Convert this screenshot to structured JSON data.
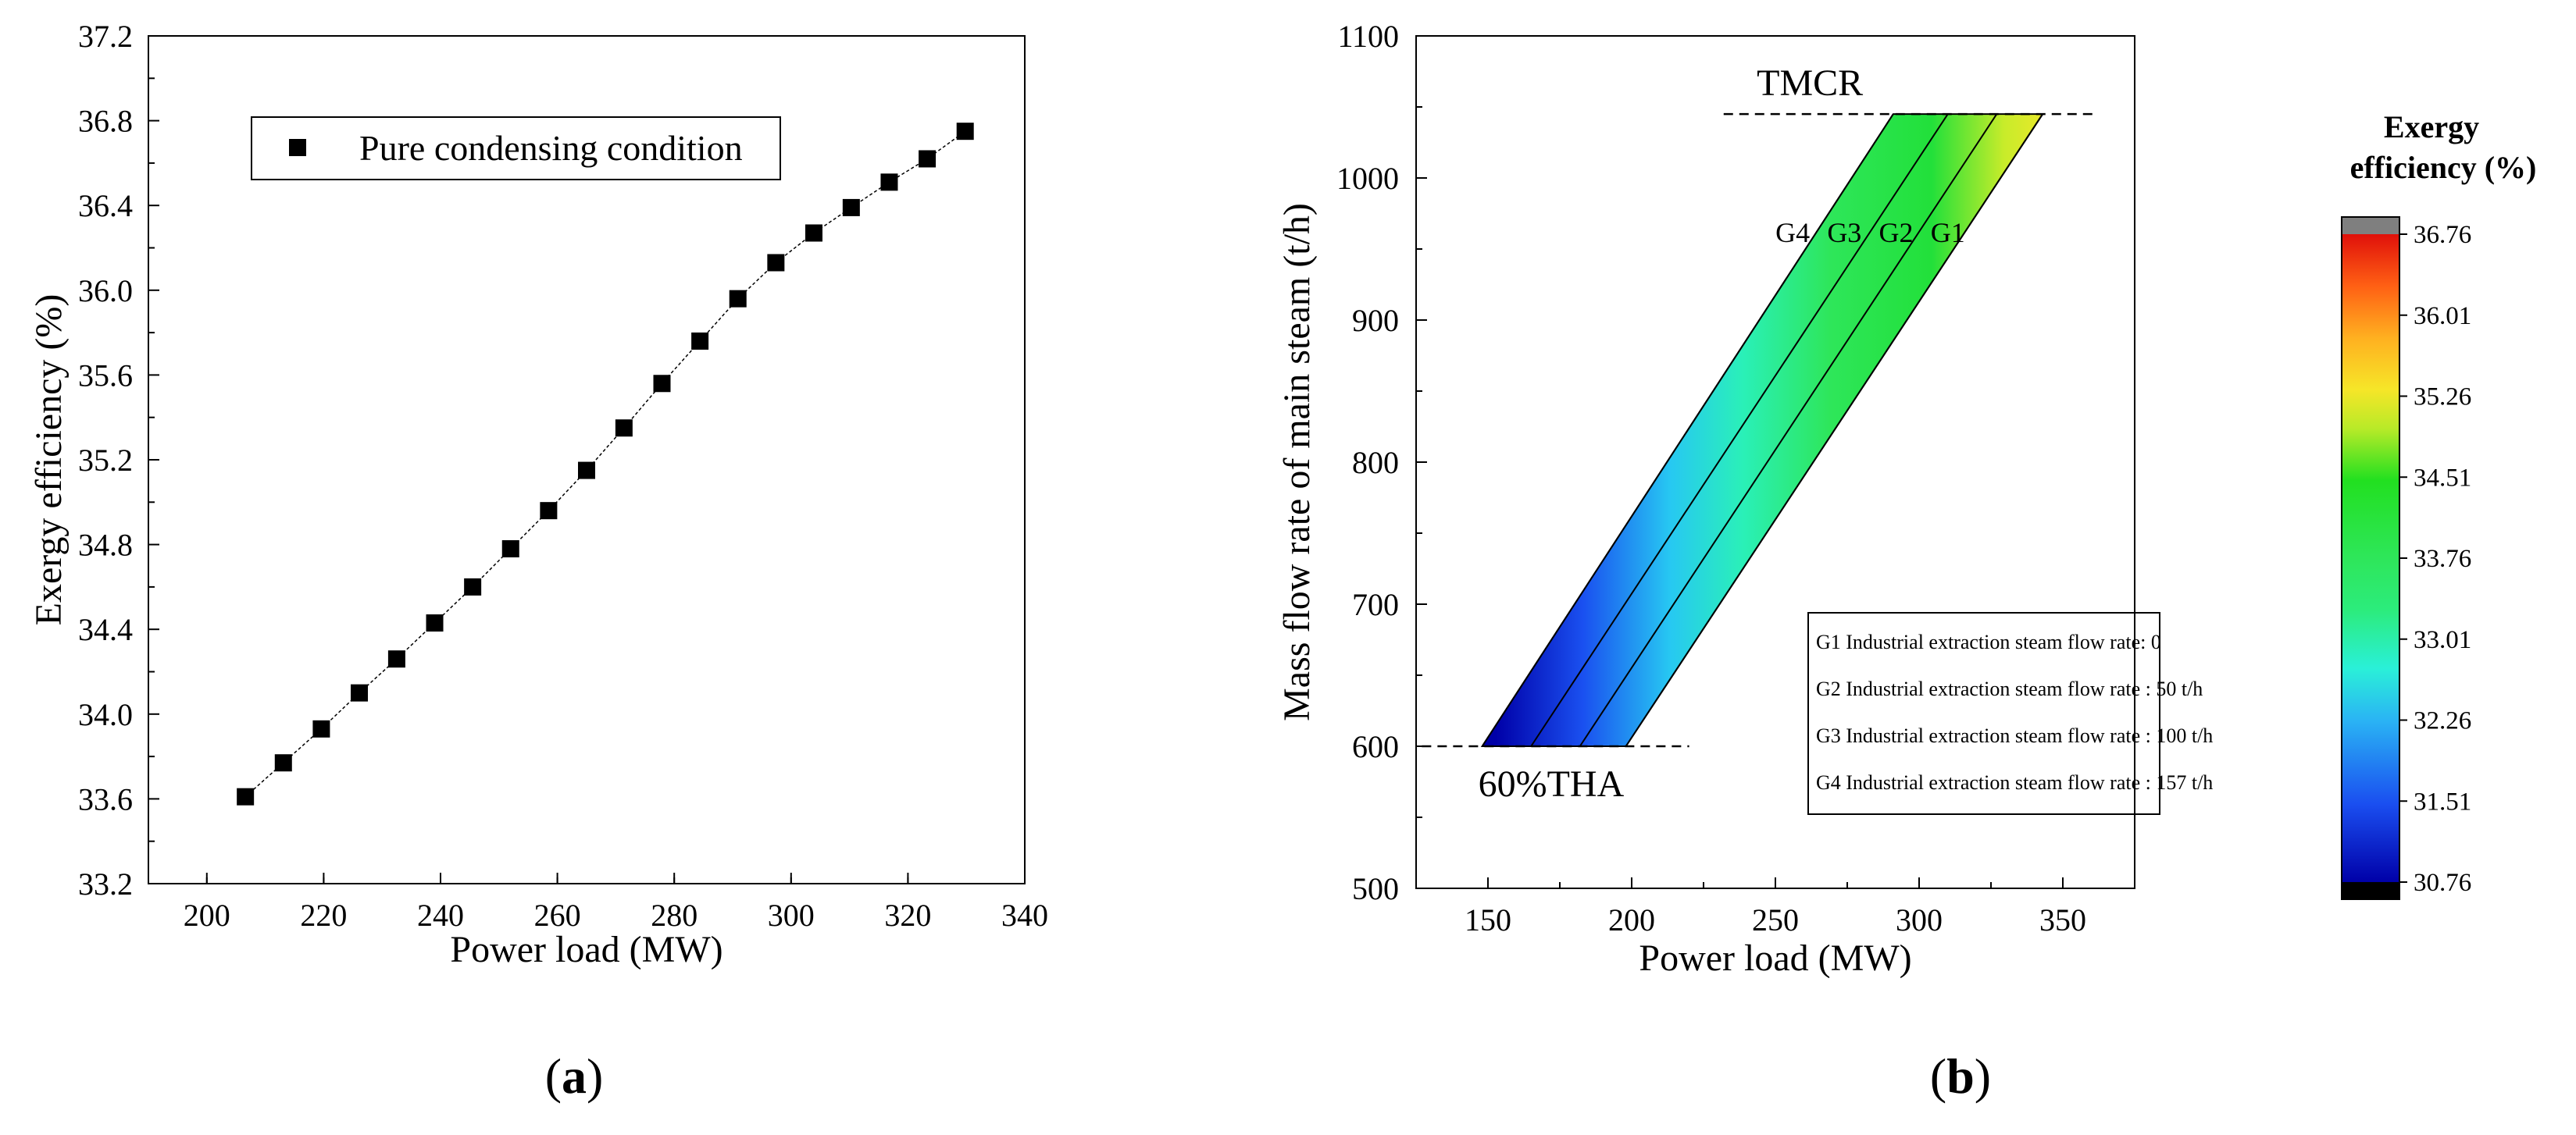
{
  "colors": {
    "axis": "#000000",
    "marker": "#000000",
    "background": "#ffffff"
  },
  "chart_data": [
    {
      "id": "a",
      "type": "line",
      "panel_label": "(a)",
      "panel_letter": "a",
      "xlabel": "Power load (MW)",
      "ylabel": "Exergy efficiency (%)",
      "xlim": [
        190,
        340
      ],
      "ylim": [
        33.2,
        37.2
      ],
      "xticks": [
        200,
        220,
        240,
        260,
        280,
        300,
        320,
        340
      ],
      "yticks": [
        "33.2",
        "33.6",
        "34.0",
        "34.4",
        "34.8",
        "35.2",
        "35.6",
        "36.0",
        "36.4",
        "36.8",
        "37.2"
      ],
      "legend": "Pure condensing condition",
      "legend_position": "top-left",
      "marker": "square",
      "series": [
        {
          "name": "Pure condensing condition",
          "x": [
            206.6,
            213.1,
            219.6,
            226.1,
            232.5,
            239.0,
            245.5,
            252.0,
            258.5,
            265.0,
            271.4,
            277.9,
            284.4,
            290.9,
            297.4,
            303.9,
            310.3,
            316.8,
            323.3,
            329.8
          ],
          "y": [
            33.61,
            33.77,
            33.93,
            34.1,
            34.26,
            34.43,
            34.6,
            34.78,
            34.96,
            35.15,
            35.35,
            35.56,
            35.76,
            35.96,
            36.13,
            36.27,
            36.39,
            36.51,
            36.62,
            36.75
          ]
        }
      ]
    },
    {
      "id": "b",
      "type": "heatmap",
      "panel_label": "(b)",
      "panel_letter": "b",
      "xlabel": "Power load (MW)",
      "ylabel": "Mass flow rate of main steam (t/h)",
      "xlim": [
        125,
        375
      ],
      "ylim": [
        500,
        1100
      ],
      "xticks": [
        150,
        200,
        250,
        300,
        350
      ],
      "yticks": [
        500,
        600,
        700,
        800,
        900,
        1000,
        1100
      ],
      "region_bottom": {
        "flow": 600,
        "power_min": 148,
        "power_max": 198
      },
      "region_top": {
        "flow": 1045,
        "power_min": 291,
        "power_max": 343
      },
      "boundaries": [
        {
          "name": "G4",
          "bottom_power": 148,
          "top_power": 291
        },
        {
          "name": "G3",
          "bottom_power": 165,
          "top_power": 310
        },
        {
          "name": "G2",
          "bottom_power": 182,
          "top_power": 327
        },
        {
          "name": "G1",
          "bottom_power": 198,
          "top_power": 343
        }
      ],
      "curve_labels": [
        "G4",
        "G3",
        "G2",
        "G1"
      ],
      "reference_lines": [
        {
          "label": "TMCR",
          "flow": 1045,
          "power_from": 232,
          "power_to": 362
        },
        {
          "label": "60%THA",
          "flow": 600,
          "power_from": 127,
          "power_to": 220
        }
      ],
      "notes": [
        "G1 Industrial extraction steam flow rate: 0",
        "G2 Industrial extraction steam flow rate : 50 t/h",
        "G3 Industrial extraction steam flow rate : 100 t/h",
        "G4 Industrial extraction steam flow rate : 157 t/h"
      ],
      "colorbar": {
        "title_line1": "Exergy",
        "title_line2": "efficiency  (%)",
        "min": 30.76,
        "max": 36.76,
        "ticks": [
          "36.76",
          "36.01",
          "35.26",
          "34.51",
          "33.76",
          "33.01",
          "32.26",
          "31.51",
          "30.76"
        ]
      }
    }
  ]
}
